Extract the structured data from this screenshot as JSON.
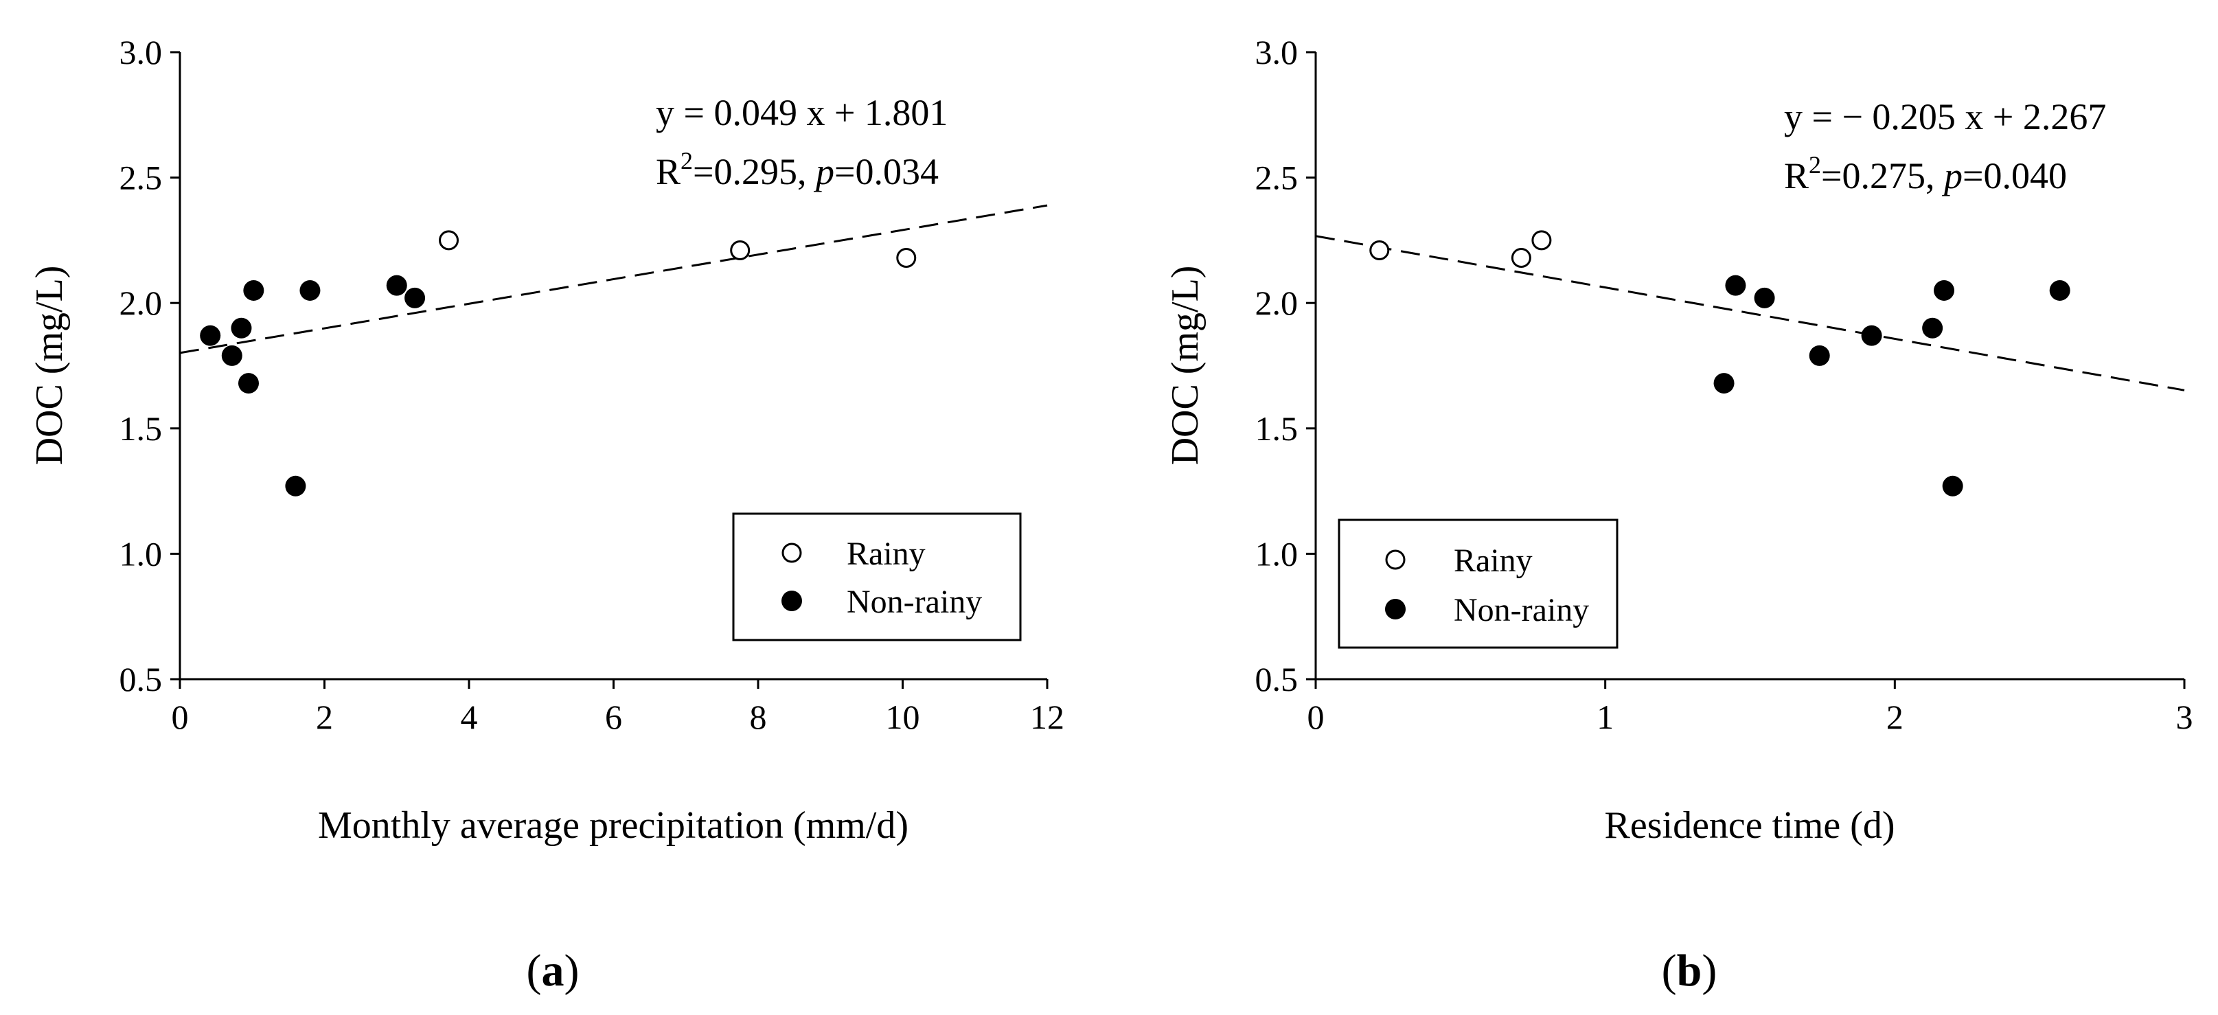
{
  "chart_data": [
    {
      "type": "scatter",
      "panel": "a",
      "xlabel": "Monthly average precipitation (mm/d)",
      "ylabel": "DOC (mg/L)",
      "xlim": [
        0,
        12
      ],
      "ylim": [
        0.5,
        3.0
      ],
      "xticks": [
        0,
        2,
        4,
        6,
        8,
        10,
        12
      ],
      "yticks": [
        0.5,
        1.0,
        1.5,
        2.0,
        2.5,
        3.0
      ],
      "xtick_labels": [
        "0",
        "2",
        "4",
        "6",
        "8",
        "10",
        "12"
      ],
      "ytick_labels": [
        "0.5",
        "1.0",
        "1.5",
        "2.0",
        "2.5",
        "3.0"
      ],
      "series": [
        {
          "name": "Rainy",
          "marker": "open-circle",
          "x": [
            3.72,
            7.75,
            10.05
          ],
          "y": [
            2.25,
            2.21,
            2.18
          ]
        },
        {
          "name": "Non-rainy",
          "marker": "filled-circle",
          "x": [
            0.42,
            0.72,
            0.85,
            0.95,
            1.02,
            1.6,
            1.8,
            3.0,
            3.25
          ],
          "y": [
            1.87,
            1.79,
            1.9,
            1.68,
            2.05,
            1.27,
            2.05,
            2.07,
            2.02
          ]
        }
      ],
      "fit": {
        "slope": 0.049,
        "intercept": 1.801
      },
      "equation_parts": {
        "line1": "y = 0.049 x + 1.801",
        "r": "R",
        "sup": "2",
        "eq": "=0.295, ",
        "p": "p",
        "pval": "=0.034"
      },
      "legend": {
        "position": "bottom-right",
        "entries": [
          "Rainy",
          "Non-rainy"
        ]
      },
      "panel_label": {
        "open": "(",
        "letter": "a",
        "close": ")"
      }
    },
    {
      "type": "scatter",
      "panel": "b",
      "xlabel": "Residence time (d)",
      "ylabel": "DOC (mg/L)",
      "xlim": [
        0,
        3
      ],
      "ylim": [
        0.5,
        3.0
      ],
      "xticks": [
        0,
        1,
        2,
        3
      ],
      "yticks": [
        0.5,
        1.0,
        1.5,
        2.0,
        2.5,
        3.0
      ],
      "xtick_labels": [
        "0",
        "1",
        "2",
        "3"
      ],
      "ytick_labels": [
        "0.5",
        "1.0",
        "1.5",
        "2.0",
        "2.5",
        "3.0"
      ],
      "series": [
        {
          "name": "Rainy",
          "marker": "open-circle",
          "x": [
            0.22,
            0.71,
            0.78
          ],
          "y": [
            2.21,
            2.18,
            2.25
          ]
        },
        {
          "name": "Non-rainy",
          "marker": "filled-circle",
          "x": [
            1.41,
            1.45,
            1.55,
            1.74,
            1.92,
            2.13,
            2.17,
            2.2,
            2.57
          ],
          "y": [
            1.68,
            2.07,
            2.02,
            1.79,
            1.87,
            1.9,
            2.05,
            1.27,
            2.05
          ]
        }
      ],
      "fit": {
        "slope": -0.205,
        "intercept": 2.267
      },
      "equation_parts": {
        "line1": "y = − 0.205 x + 2.267",
        "r": "R",
        "sup": "2",
        "eq": "=0.275, ",
        "p": "p",
        "pval": "=0.040"
      },
      "legend": {
        "position": "bottom-left",
        "entries": [
          "Rainy",
          "Non-rainy"
        ]
      },
      "panel_label": {
        "open": "(",
        "letter": "b",
        "close": ")"
      }
    }
  ]
}
